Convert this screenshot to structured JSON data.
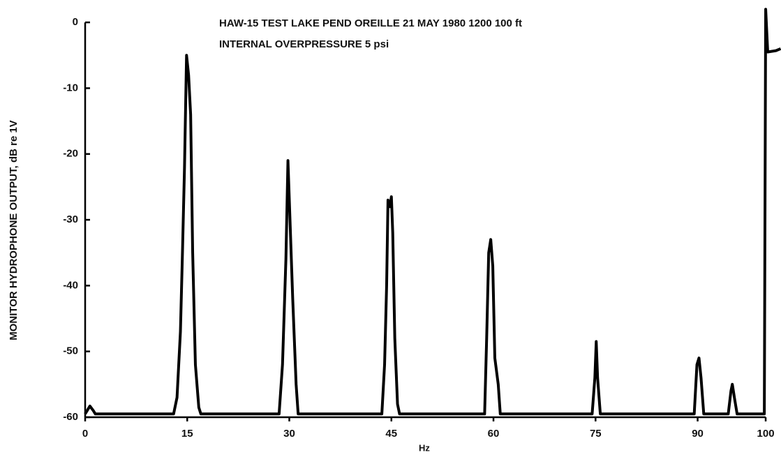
{
  "chart_data": {
    "type": "line",
    "title": "HAW-15 TEST   LAKE PEND OREILLE   21 MAY 1980   1200   100 ft",
    "subtitle": "INTERNAL OVERPRESSURE 5 psi",
    "x_label": "Hz",
    "y_label": "MONITOR HYDROPHONE OUTPUT, dB re 1V",
    "color": "#000000",
    "x": [
      0,
      0.7,
      1.2,
      1.5,
      13,
      13.5,
      14,
      14.3,
      14.6,
      14.9,
      15.2,
      15.5,
      15.8,
      16.2,
      16.7,
      17,
      28.5,
      29,
      29.5,
      29.8,
      30.1,
      30.5,
      31,
      31.3,
      43.6,
      44,
      44.3,
      44.5,
      44.8,
      45,
      45.2,
      45.5,
      45.9,
      46.2,
      58.7,
      59,
      59.3,
      59.6,
      59.9,
      60.2,
      60.7,
      61,
      74.5,
      74.9,
      75.1,
      75.3,
      75.7,
      89.5,
      89.9,
      90.2,
      90.5,
      90.9,
      94.5,
      94.9,
      95.1,
      95.4,
      95.8,
      99.8,
      100,
      100.3,
      101.5,
      102.2
    ],
    "values": [
      -59.5,
      -58.3,
      -59,
      -59.5,
      -59.5,
      -57,
      -47,
      -35,
      -22,
      -5,
      -8,
      -14,
      -35,
      -52,
      -58.5,
      -59.5,
      -59.5,
      -52,
      -36,
      -21,
      -30,
      -42,
      -55,
      -59.5,
      -59.5,
      -52,
      -40,
      -27,
      -28,
      -26.5,
      -32,
      -48,
      -58,
      -59.5,
      -59.5,
      -48,
      -35,
      -33,
      -37,
      -51,
      -55,
      -59.5,
      -59.5,
      -54,
      -48.5,
      -54,
      -59.5,
      -59.5,
      -52,
      -51,
      -54,
      -59.5,
      -59.5,
      -56,
      -55,
      -57,
      -59.5,
      -59.5,
      2,
      -4.5,
      -4.3,
      -4
    ],
    "xlim": [
      0,
      102.2
    ],
    "ylim": [
      -60,
      3.4
    ],
    "xticks": [
      0,
      15,
      30,
      45,
      60,
      75,
      90,
      100
    ],
    "yticks": [
      0,
      -10,
      -20,
      -30,
      -40,
      -50,
      -60
    ]
  }
}
